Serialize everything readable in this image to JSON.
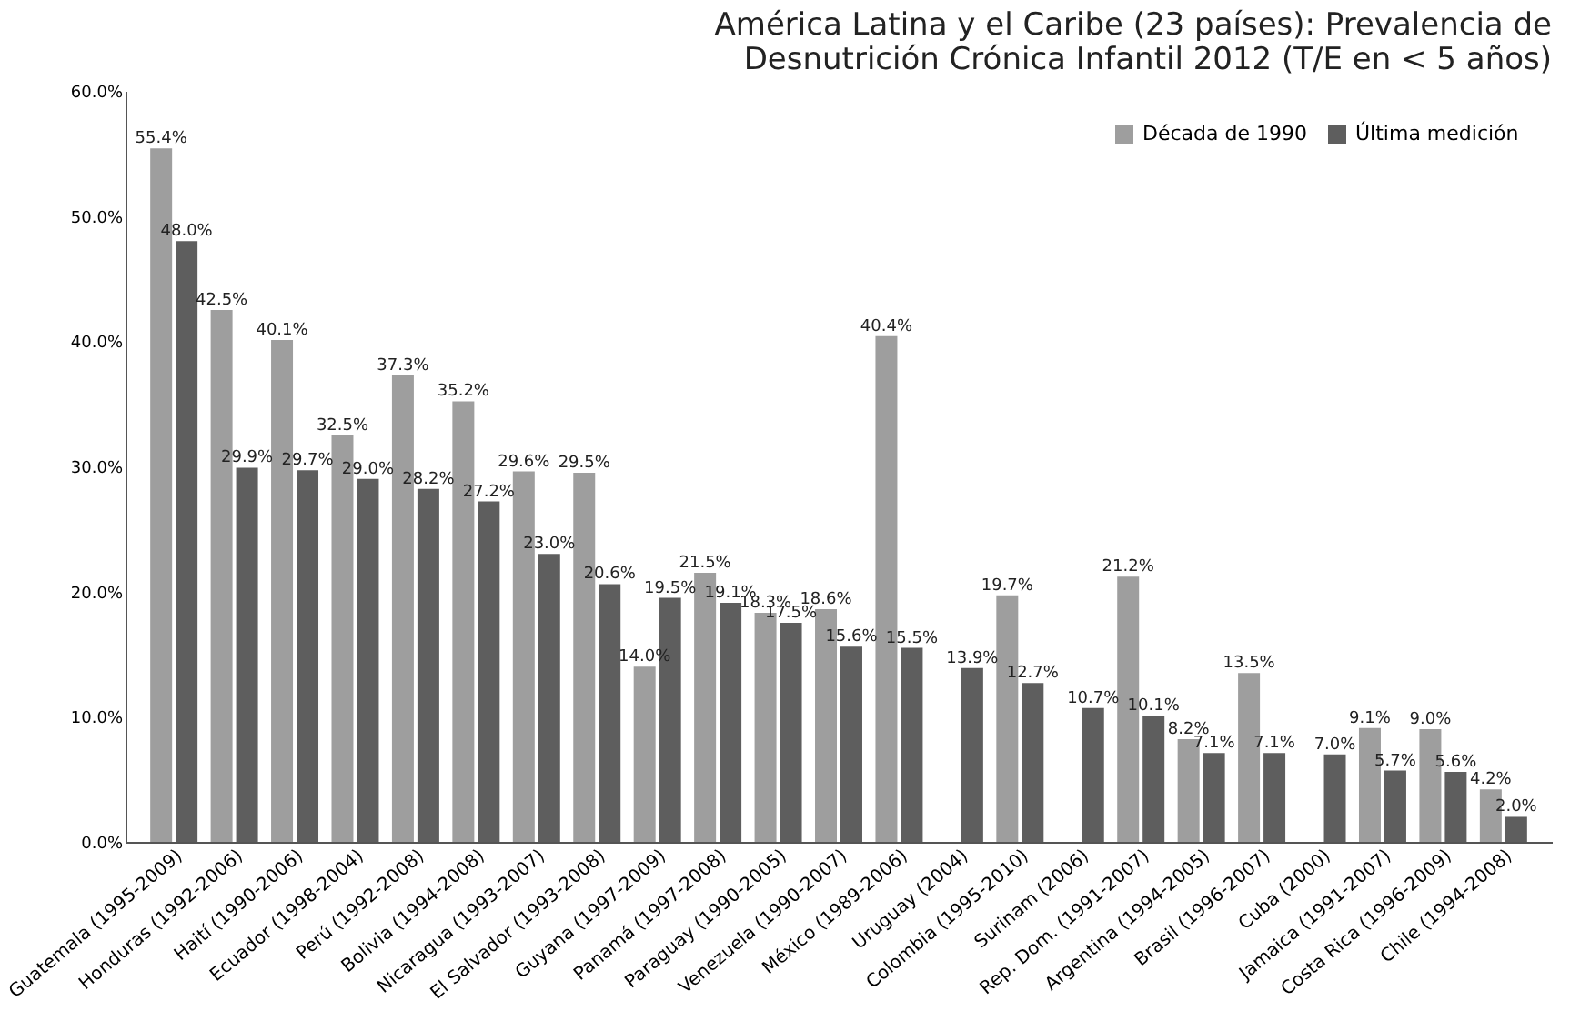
{
  "chart_data": {
    "type": "bar",
    "title": "América Latina y el Caribe (23 países): Prevalencia de\nDesnutrición Crónica Infantil 2012 (T/E en < 5 años)",
    "categories": [
      "Guatemala (1995-2009)",
      "Honduras (1992-2006)",
      "Haití (1990-2006)",
      "Ecuador (1998-2004)",
      "Perú (1992-2008)",
      "Bolivia (1994-2008)",
      "Nicaragua (1993-2007)",
      "El Salvador (1993-2008)",
      "Guyana (1997-2009)",
      "Panamá (1997-2008)",
      "Paraguay (1990-2005)",
      "Venezuela (1990-2007)",
      "México (1989-2006)",
      "Uruguay (2004)",
      "Colombia (1995-2010)",
      "Surinam (2006)",
      "Rep. Dom. (1991-2007)",
      "Argentina (1994-2005)",
      "Brasil (1996-2007)",
      "Cuba (2000)",
      "Jamaica (1991-2007)",
      "Costa Rica (1996-2009)",
      "Chile (1994-2008)"
    ],
    "series": [
      {
        "name": "Década de 1990",
        "color": "#9e9e9e",
        "values": [
          55.4,
          42.5,
          40.1,
          32.5,
          37.3,
          35.2,
          29.6,
          29.5,
          14.0,
          21.5,
          18.3,
          18.6,
          40.4,
          null,
          19.7,
          null,
          21.2,
          8.2,
          13.5,
          null,
          9.1,
          9.0,
          4.2
        ],
        "value_labels": [
          "55.4%",
          "42.5%",
          "40.1%",
          "32.5%",
          "37.3%",
          "35.2%",
          "29.6%",
          "29.5%",
          "14.0%",
          "21.5%",
          "18.3%",
          "18.6%",
          "40.4%",
          null,
          "19.7%",
          null,
          "21.2%",
          "8.2%",
          "13.5%",
          null,
          "9.1%",
          "9.0%",
          "4.2%"
        ]
      },
      {
        "name": "Última medición",
        "color": "#5e5e5e",
        "values": [
          48.0,
          29.9,
          29.7,
          29.0,
          28.2,
          27.2,
          23.0,
          20.6,
          19.5,
          19.1,
          17.5,
          15.6,
          15.5,
          13.9,
          12.7,
          10.7,
          10.1,
          7.1,
          7.1,
          7.0,
          5.7,
          5.6,
          2.0
        ],
        "value_labels": [
          "48.0%",
          "29.9%",
          "29.7%",
          "29.0%",
          "28.2%",
          "27.2%",
          "23.0%",
          "20.6%",
          "19.5%",
          "19.1%",
          "17.5%",
          "15.6%",
          "15.5%",
          "13.9%",
          "12.7%",
          "10.7%",
          "10.1%",
          "7.1%",
          "7.1%",
          "7.0%",
          "5.7%",
          "5.6%",
          "2.0%"
        ]
      }
    ],
    "ylim": [
      0,
      60
    ],
    "yticks": [
      {
        "value": 0,
        "label": "0.0%"
      },
      {
        "value": 10,
        "label": "10.0%"
      },
      {
        "value": 20,
        "label": "20.0%"
      },
      {
        "value": 30,
        "label": "30.0%"
      },
      {
        "value": 40,
        "label": "40.0%"
      },
      {
        "value": 50,
        "label": "50.0%"
      },
      {
        "value": 60,
        "label": "60.0%"
      }
    ],
    "legend": "top right",
    "grid": false
  }
}
